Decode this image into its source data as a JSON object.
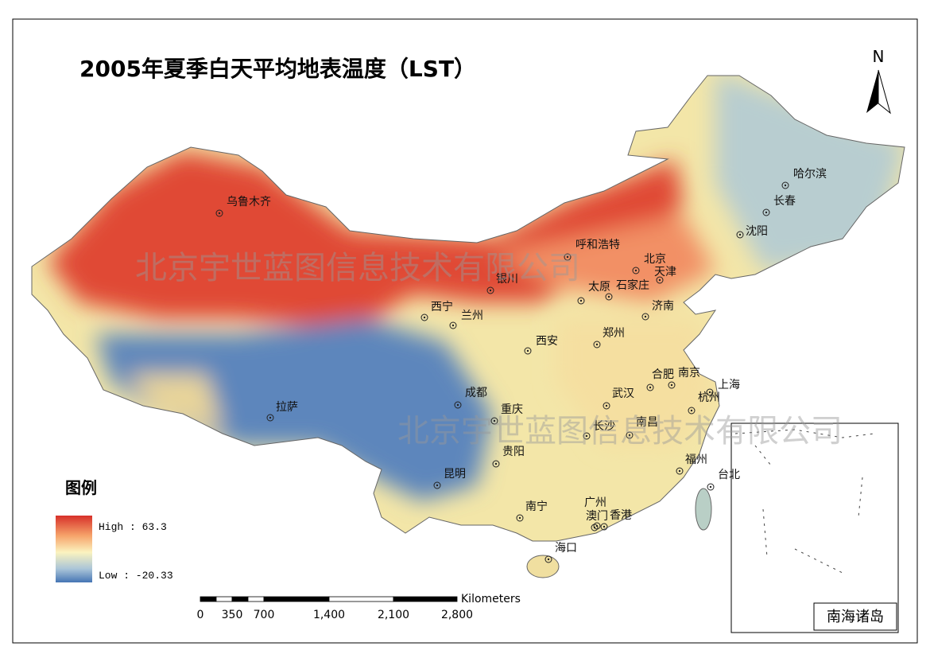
{
  "title": "2005年夏季白天平均地表温度（LST）",
  "north": "N",
  "legend": {
    "title": "图例",
    "high": "High : 63.3",
    "low": "Low : -20.33"
  },
  "scale_bar": {
    "unit": "Kilometers",
    "ticks": [
      "0",
      "350",
      "700",
      "1,400",
      "2,100",
      "2,800"
    ]
  },
  "cities": [
    "乌鲁木齐",
    "呼和浩特",
    "北京",
    "天津",
    "银川",
    "太原",
    "石家庄",
    "济南",
    "西宁",
    "兰州",
    "西安",
    "郑州",
    "合肥",
    "南京",
    "上海",
    "杭州",
    "武汉",
    "成都",
    "重庆",
    "长沙",
    "南昌",
    "贵阳",
    "福州",
    "昆明",
    "台北",
    "南宁",
    "广州",
    "澳门",
    "香港",
    "海口",
    "拉萨",
    "哈尔滨",
    "长春",
    "沈阳"
  ],
  "inset_label": "南海诸岛",
  "watermark": "北京宇世蓝图信息技术有限公司"
}
